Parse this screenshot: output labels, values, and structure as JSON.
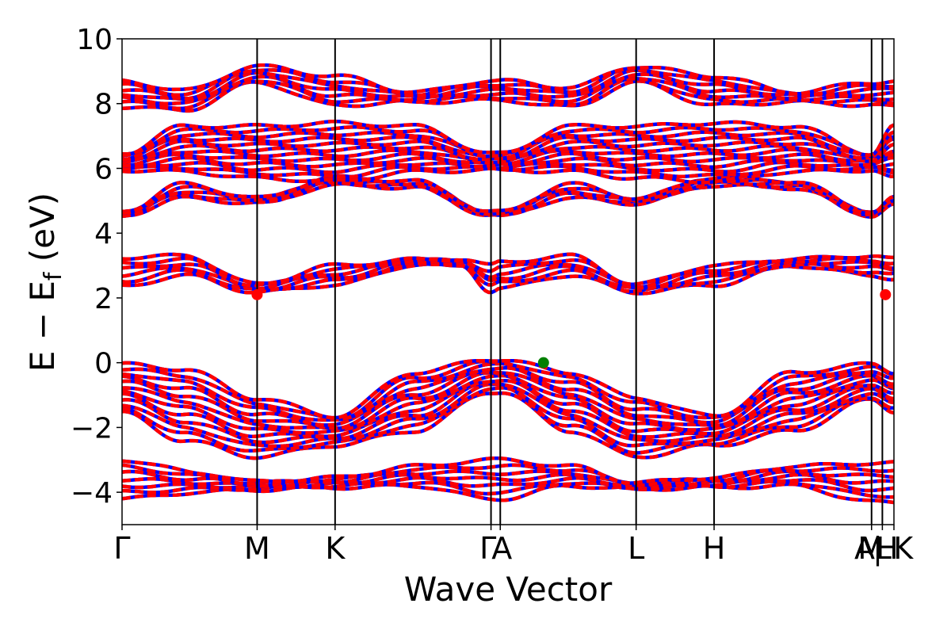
{
  "chart_data": {
    "type": "line",
    "title": "",
    "xlabel": "Wave Vector",
    "ylabel": "E − E_f (eV)",
    "ylabel_parts": {
      "main": "E − E",
      "sub": "f",
      "unit": " (eV)"
    },
    "ylim": [
      -5,
      10
    ],
    "yticks": [
      -4,
      -2,
      0,
      2,
      4,
      6,
      8,
      10
    ],
    "ytick_labels": [
      "−4",
      "−2",
      "0",
      "2",
      "4",
      "6",
      "8",
      "10"
    ],
    "x_range": [
      0,
      1
    ],
    "grid": false,
    "legend": "none",
    "colors": {
      "spin_up": "#0000ff",
      "spin_down": "#ff0000",
      "vbm_marker": "#008000",
      "cbm_marker": "#ff0000",
      "kpath_lines": "#000000"
    },
    "kpoints": [
      {
        "label": "Γ",
        "x": 0.0
      },
      {
        "label": "M",
        "x": 0.175
      },
      {
        "label": "K",
        "x": 0.276
      },
      {
        "label": "Γ",
        "x": 0.478
      },
      {
        "label": "A",
        "x": 0.49
      },
      {
        "label": "L",
        "x": 0.666
      },
      {
        "label": "H",
        "x": 0.767
      },
      {
        "label": "A|L",
        "x": 0.971
      },
      {
        "label": "M|H",
        "x": 0.985
      },
      {
        "label": "K",
        "x": 1.0
      }
    ],
    "kpoint_display": [
      {
        "text": "Γ",
        "x": 0.0
      },
      {
        "text": "M",
        "x": 0.175
      },
      {
        "text": "K",
        "x": 0.276
      },
      {
        "text": "Γ",
        "x": 0.474
      },
      {
        "text": "A",
        "x": 0.492
      },
      {
        "text": "L",
        "x": 0.666
      },
      {
        "text": "H",
        "x": 0.767
      },
      {
        "text": "A",
        "x": 0.962
      },
      {
        "text": "M",
        "x": 0.97
      },
      {
        "text": "|",
        "x": 0.979
      },
      {
        "text": "L",
        "x": 0.986
      },
      {
        "text": "H",
        "x": 0.991
      },
      {
        "text": "K",
        "x": 1.012
      }
    ],
    "series": [
      {
        "name": "",
        "color": "#0000ff",
        "style": "solid"
      },
      {
        "name": "",
        "color": "#ff0000",
        "style": "dashed"
      }
    ],
    "band_groups": [
      {
        "band_count": 7,
        "levels": [
          [
            0,
            -3.6
          ],
          [
            0.1,
            -3.7
          ],
          [
            0.175,
            -3.8
          ],
          [
            0.276,
            -3.7
          ],
          [
            0.38,
            -3.5
          ],
          [
            0.478,
            -3.6
          ],
          [
            0.49,
            -3.6
          ],
          [
            0.58,
            -3.5
          ],
          [
            0.666,
            -3.8
          ],
          [
            0.767,
            -3.7
          ],
          [
            0.87,
            -3.5
          ],
          [
            0.971,
            -3.7
          ],
          [
            1,
            -3.7
          ]
        ],
        "amplitudes": [
          [
            0,
            0.6
          ],
          [
            0.1,
            0.3
          ],
          [
            0.175,
            0.12
          ],
          [
            0.276,
            0.15
          ],
          [
            0.38,
            0.3
          ],
          [
            0.478,
            0.6
          ],
          [
            0.49,
            0.6
          ],
          [
            0.58,
            0.3
          ],
          [
            0.666,
            0.1
          ],
          [
            0.767,
            0.15
          ],
          [
            0.87,
            0.3
          ],
          [
            0.971,
            0.6
          ],
          [
            1,
            0.6
          ]
        ]
      },
      {
        "band_count": 12,
        "levels": [
          [
            0,
            -0.8
          ],
          [
            0.08,
            -1.3
          ],
          [
            0.175,
            -2.0
          ],
          [
            0.276,
            -2.1
          ],
          [
            0.38,
            -1.2
          ],
          [
            0.478,
            -0.4
          ],
          [
            0.49,
            -0.4
          ],
          [
            0.58,
            -1.2
          ],
          [
            0.666,
            -2.0
          ],
          [
            0.767,
            -2.1
          ],
          [
            0.87,
            -1.2
          ],
          [
            0.971,
            -0.6
          ],
          [
            1,
            -0.9
          ]
        ],
        "amplitudes": [
          [
            0,
            0.75
          ],
          [
            0.08,
            1.1
          ],
          [
            0.175,
            0.9
          ],
          [
            0.276,
            0.45
          ],
          [
            0.38,
            0.9
          ],
          [
            0.478,
            0.5
          ],
          [
            0.49,
            0.5
          ],
          [
            0.58,
            0.9
          ],
          [
            0.666,
            0.9
          ],
          [
            0.767,
            0.45
          ],
          [
            0.87,
            0.9
          ],
          [
            0.971,
            0.55
          ],
          [
            1,
            0.6
          ]
        ]
      },
      {
        "band_count": 6,
        "levels": [
          [
            0,
            2.8
          ],
          [
            0.08,
            3.0
          ],
          [
            0.175,
            2.3
          ],
          [
            0.276,
            2.7
          ],
          [
            0.38,
            3.1
          ],
          [
            0.44,
            3.1
          ],
          [
            0.478,
            2.6
          ],
          [
            0.49,
            2.7
          ],
          [
            0.58,
            3.0
          ],
          [
            0.666,
            2.3
          ],
          [
            0.767,
            2.7
          ],
          [
            0.87,
            3.1
          ],
          [
            0.971,
            3.0
          ],
          [
            1,
            2.9
          ]
        ],
        "amplitudes": [
          [
            0,
            0.45
          ],
          [
            0.08,
            0.3
          ],
          [
            0.175,
            0.12
          ],
          [
            0.276,
            0.3
          ],
          [
            0.38,
            0.08
          ],
          [
            0.44,
            0.1
          ],
          [
            0.478,
            0.4
          ],
          [
            0.49,
            0.4
          ],
          [
            0.58,
            0.3
          ],
          [
            0.666,
            0.12
          ],
          [
            0.767,
            0.3
          ],
          [
            0.87,
            0.1
          ],
          [
            0.971,
            0.3
          ],
          [
            1,
            0.3
          ]
        ]
      },
      {
        "band_count": 5,
        "levels": [
          [
            0,
            4.6
          ],
          [
            0.08,
            5.3
          ],
          [
            0.175,
            5.0
          ],
          [
            0.276,
            5.6
          ],
          [
            0.38,
            5.5
          ],
          [
            0.478,
            4.6
          ],
          [
            0.49,
            4.6
          ],
          [
            0.58,
            5.3
          ],
          [
            0.666,
            5.0
          ],
          [
            0.767,
            5.6
          ],
          [
            0.87,
            5.5
          ],
          [
            0.971,
            4.6
          ],
          [
            1,
            5.0
          ]
        ],
        "amplitudes": [
          [
            0,
            0.05
          ],
          [
            0.08,
            0.22
          ],
          [
            0.175,
            0.08
          ],
          [
            0.276,
            0.12
          ],
          [
            0.38,
            0.1
          ],
          [
            0.478,
            0.05
          ],
          [
            0.49,
            0.05
          ],
          [
            0.58,
            0.22
          ],
          [
            0.666,
            0.08
          ],
          [
            0.767,
            0.12
          ],
          [
            0.87,
            0.1
          ],
          [
            0.971,
            0.05
          ],
          [
            1,
            0.1
          ]
        ]
      },
      {
        "band_count": 12,
        "levels": [
          [
            0,
            6.2
          ],
          [
            0.08,
            6.6
          ],
          [
            0.175,
            6.5
          ],
          [
            0.276,
            6.5
          ],
          [
            0.38,
            6.6
          ],
          [
            0.478,
            6.2
          ],
          [
            0.49,
            6.2
          ],
          [
            0.58,
            6.6
          ],
          [
            0.666,
            6.5
          ],
          [
            0.767,
            6.5
          ],
          [
            0.87,
            6.6
          ],
          [
            0.971,
            6.2
          ],
          [
            1,
            6.5
          ]
        ],
        "amplitudes": [
          [
            0,
            0.25
          ],
          [
            0.08,
            0.7
          ],
          [
            0.175,
            0.8
          ],
          [
            0.276,
            0.9
          ],
          [
            0.38,
            0.7
          ],
          [
            0.478,
            0.25
          ],
          [
            0.49,
            0.25
          ],
          [
            0.58,
            0.7
          ],
          [
            0.666,
            0.8
          ],
          [
            0.767,
            0.9
          ],
          [
            0.87,
            0.7
          ],
          [
            0.971,
            0.25
          ],
          [
            1,
            0.8
          ]
        ]
      },
      {
        "band_count": 7,
        "levels": [
          [
            0,
            8.3
          ],
          [
            0.08,
            8.1
          ],
          [
            0.175,
            8.9
          ],
          [
            0.276,
            8.4
          ],
          [
            0.38,
            8.2
          ],
          [
            0.478,
            8.4
          ],
          [
            0.49,
            8.4
          ],
          [
            0.58,
            8.2
          ],
          [
            0.666,
            8.9
          ],
          [
            0.767,
            8.4
          ],
          [
            0.87,
            8.2
          ],
          [
            0.971,
            8.3
          ],
          [
            1,
            8.3
          ]
        ],
        "amplitudes": [
          [
            0,
            0.4
          ],
          [
            0.08,
            0.3
          ],
          [
            0.175,
            0.25
          ],
          [
            0.276,
            0.45
          ],
          [
            0.38,
            0.15
          ],
          [
            0.478,
            0.3
          ],
          [
            0.49,
            0.3
          ],
          [
            0.58,
            0.3
          ],
          [
            0.666,
            0.25
          ],
          [
            0.767,
            0.45
          ],
          [
            0.87,
            0.15
          ],
          [
            0.971,
            0.35
          ],
          [
            1,
            0.4
          ]
        ]
      }
    ],
    "markers": [
      {
        "kind": "vbm",
        "x": 0.546,
        "y": 0.0,
        "color": "#008000"
      },
      {
        "kind": "cbm",
        "x": 0.175,
        "y": 2.1,
        "color": "#ff0000"
      },
      {
        "kind": "cbm",
        "x": 0.989,
        "y": 2.1,
        "color": "#ff0000"
      }
    ]
  }
}
